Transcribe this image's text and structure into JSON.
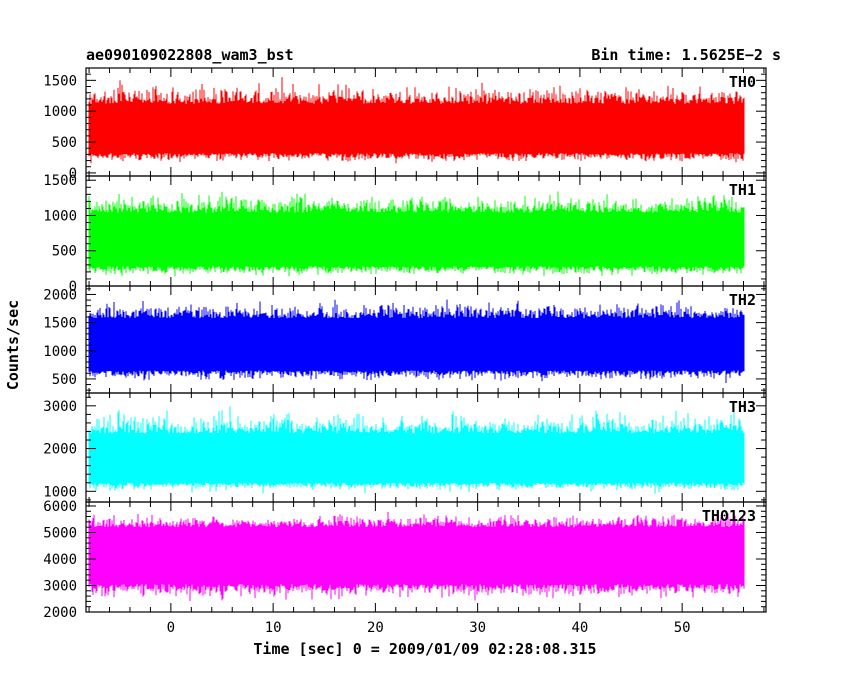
{
  "header": {
    "left_title": "ae090109022808_wam3_bst",
    "right_title": "Bin time: 1.5625E−2 s"
  },
  "chart_data": {
    "type": "line",
    "xlabel": "Time [sec] 0 = 2009/01/09 02:28:08.315",
    "ylabel": "Counts/sec",
    "xlim": [
      -8.3,
      58.2
    ],
    "x_ticks": [
      0,
      10,
      20,
      30,
      40,
      50
    ],
    "x_minor_step": 2,
    "data_x_range": [
      -8,
      56
    ],
    "panels": [
      {
        "name": "TH0",
        "color": "#ff0000",
        "ylim": [
          -50,
          1700
        ],
        "y_ticks": [
          0,
          500,
          1000,
          1500
        ],
        "y_minor_step": 100,
        "mean": 720,
        "band": [
          320,
          1120
        ],
        "extremes": [
          50,
          1700
        ]
      },
      {
        "name": "TH1",
        "color": "#00ff00",
        "ylim": [
          0,
          1560
        ],
        "y_ticks": [
          0,
          500,
          1000,
          1500
        ],
        "y_minor_step": 100,
        "mean": 660,
        "band": [
          280,
          1040
        ],
        "extremes": [
          30,
          1560
        ]
      },
      {
        "name": "TH2",
        "color": "#0000ff",
        "ylim": [
          250,
          2150
        ],
        "y_ticks": [
          500,
          1000,
          1500,
          2000
        ],
        "y_minor_step": 100,
        "mean": 1100,
        "band": [
          650,
          1580
        ],
        "extremes": [
          320,
          2150
        ]
      },
      {
        "name": "TH3",
        "color": "#00ffff",
        "ylim": [
          750,
          3300
        ],
        "y_ticks": [
          1000,
          2000,
          3000
        ],
        "y_minor_step": 200,
        "mean": 1750,
        "band": [
          1200,
          2350
        ],
        "extremes": [
          820,
          3300
        ]
      },
      {
        "name": "TH0123",
        "color": "#ff00ff",
        "ylim": [
          2000,
          6150
        ],
        "y_ticks": [
          2000,
          3000,
          4000,
          5000,
          6000
        ],
        "y_minor_step": 200,
        "mean": 4100,
        "band": [
          3050,
          5200
        ],
        "extremes": [
          2000,
          6150
        ]
      }
    ]
  }
}
